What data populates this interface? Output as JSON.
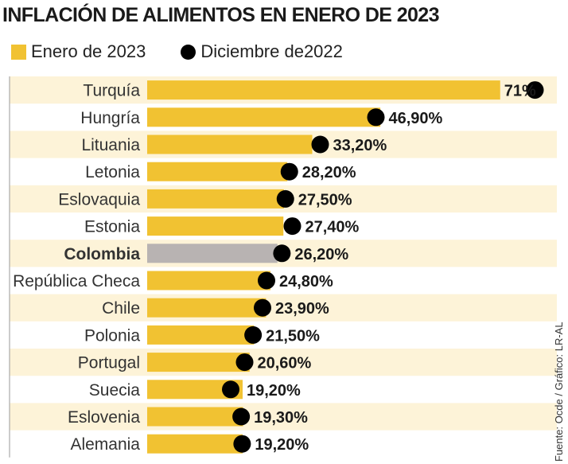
{
  "title": "INFLACIÓN DE ALIMENTOS EN ENERO DE 2023",
  "source": "Fuente: Ocde / Gráfico: LR-AL",
  "colors": {
    "bar": "#f1c232",
    "highlight_bar": "#b8b3b2",
    "dot": "#000000",
    "stripe": "#fdf3d8"
  },
  "chart_data": {
    "type": "bar",
    "orientation": "horizontal",
    "title": "INFLACIÓN DE ALIMENTOS EN ENERO DE 2023",
    "legend_position": "top-left",
    "highlight": "Colombia",
    "categories": [
      "Turquía",
      "Hungría",
      "Lituania",
      "Letonia",
      "Eslovaquia",
      "Estonia",
      "Colombia",
      "República Checa",
      "Chile",
      "Polonia",
      "Portugal",
      "Suecia",
      "Eslovenia",
      "Alemania"
    ],
    "series": [
      {
        "name": "Enero de 2023",
        "kind": "bar",
        "values": [
          71,
          46.9,
          33.2,
          28.2,
          27.5,
          27.4,
          26.2,
          24.8,
          23.9,
          21.5,
          20.6,
          19.2,
          19.3,
          19.2
        ],
        "labels": [
          "71%",
          "46,90%",
          "33,20%",
          "28,20%",
          "27,50%",
          "27,40%",
          "26,20%",
          "24,80%",
          "23,90%",
          "21,50%",
          "20,60%",
          "19,20%",
          "19,30%",
          "19,20%"
        ]
      },
      {
        "name": "Diciembre de2022",
        "kind": "dot",
        "values": [
          78,
          46.0,
          34.8,
          28.6,
          27.8,
          29.2,
          27.1,
          24.0,
          23.2,
          21.3,
          19.6,
          16.8,
          18.9,
          19.1
        ]
      }
    ],
    "xlim": [
      0,
      80
    ],
    "grid": false
  }
}
